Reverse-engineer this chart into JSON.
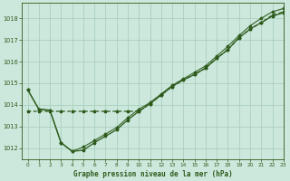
{
  "title": "Graphe pression niveau de la mer (hPa)",
  "background_color": "#cce8dc",
  "grid_color": "#aacfbe",
  "line_color": "#2d5a1b",
  "xlim": [
    -0.5,
    23
  ],
  "ylim": [
    1011.5,
    1018.7
  ],
  "yticks": [
    1012,
    1013,
    1014,
    1015,
    1016,
    1017,
    1018
  ],
  "xticks": [
    0,
    1,
    2,
    3,
    4,
    5,
    6,
    7,
    8,
    9,
    10,
    11,
    12,
    13,
    14,
    15,
    16,
    17,
    18,
    19,
    20,
    21,
    22,
    23
  ],
  "s1_x": [
    0,
    1,
    2,
    3,
    4,
    5,
    6,
    7,
    8,
    9,
    10,
    11,
    12,
    13,
    14,
    15,
    16,
    17,
    18,
    19,
    20,
    21,
    22,
    23
  ],
  "s1_y": [
    1014.7,
    1013.8,
    1013.75,
    1012.25,
    1011.85,
    1011.9,
    1012.25,
    1012.55,
    1012.85,
    1013.3,
    1013.7,
    1014.05,
    1014.45,
    1014.85,
    1015.15,
    1015.4,
    1015.7,
    1016.15,
    1016.55,
    1017.1,
    1017.5,
    1017.8,
    1018.1,
    1018.25
  ],
  "s2_x": [
    0,
    1,
    2,
    3,
    4,
    5,
    6,
    7,
    8,
    9,
    10,
    11,
    12,
    13,
    14,
    15,
    16,
    17,
    18,
    19,
    20,
    21,
    22,
    23
  ],
  "s2_y": [
    1013.7,
    1013.7,
    1013.7,
    1013.7,
    1013.7,
    1013.7,
    1013.7,
    1013.7,
    1013.7,
    1013.7,
    1013.7,
    1014.05,
    1014.45,
    1014.85,
    1015.15,
    1015.4,
    1015.7,
    1016.15,
    1016.55,
    1017.1,
    1017.5,
    1017.8,
    1018.15,
    1018.3
  ],
  "s3_x": [
    0,
    1,
    2,
    3,
    4,
    5,
    6,
    7,
    8,
    9,
    10,
    11,
    12,
    13,
    14,
    15,
    16,
    17,
    18,
    19,
    20,
    21,
    22,
    23
  ],
  "s3_y": [
    1014.7,
    1013.8,
    1013.75,
    1012.25,
    1011.85,
    1012.05,
    1012.35,
    1012.65,
    1012.95,
    1013.4,
    1013.8,
    1014.1,
    1014.5,
    1014.9,
    1015.2,
    1015.5,
    1015.8,
    1016.25,
    1016.7,
    1017.2,
    1017.65,
    1018.0,
    1018.3,
    1018.45
  ]
}
